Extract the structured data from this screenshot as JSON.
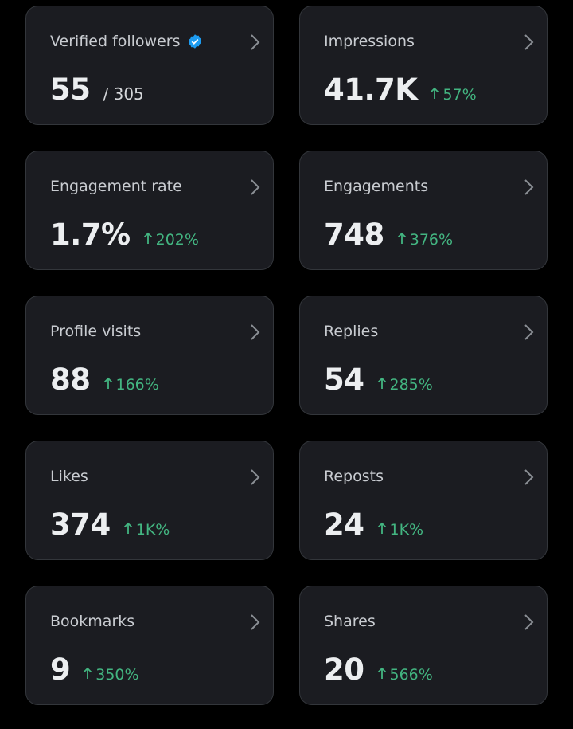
{
  "cards": [
    {
      "title": "Verified followers",
      "value": "55",
      "total": "/ 305"
    },
    {
      "title": "Impressions",
      "value": "41.7K",
      "change": "57%"
    },
    {
      "title": "Engagement rate",
      "value": "1.7%",
      "change": "202%"
    },
    {
      "title": "Engagements",
      "value": "748",
      "change": "376%"
    },
    {
      "title": "Profile visits",
      "value": "88",
      "change": "166%"
    },
    {
      "title": "Replies",
      "value": "54",
      "change": "285%"
    },
    {
      "title": "Likes",
      "value": "374",
      "change": "1K%"
    },
    {
      "title": "Reposts",
      "value": "24",
      "change": "1K%"
    },
    {
      "title": "Bookmarks",
      "value": "9",
      "change": "350%"
    },
    {
      "title": "Shares",
      "value": "20",
      "change": "566%"
    }
  ]
}
